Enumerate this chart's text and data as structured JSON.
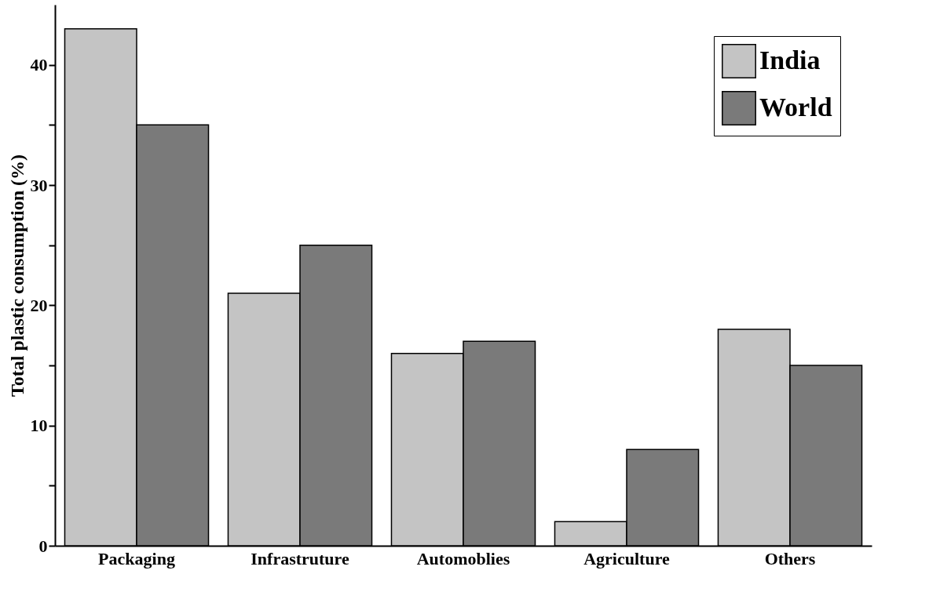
{
  "chart_data": {
    "type": "bar",
    "ylabel": "Total  plastic consumption (%)",
    "categories": [
      "Packaging",
      "Infrastruture",
      "Automoblies",
      "Agriculture",
      "Others"
    ],
    "series": [
      {
        "name": "India",
        "color": "#c4c4c4",
        "values": [
          43,
          21,
          16,
          2,
          18
        ]
      },
      {
        "name": "World",
        "color": "#7a7a7a",
        "values": [
          35,
          25,
          17,
          8,
          15
        ]
      }
    ],
    "ylim": [
      0,
      45
    ],
    "yticks": [
      0,
      {
        "value": 5,
        "label": null
      },
      10,
      {
        "value": 15,
        "label": null
      },
      20,
      {
        "value": 25,
        "label": null
      },
      30,
      {
        "value": 35,
        "label": null
      },
      40
    ],
    "grid": false,
    "legend": "top right"
  }
}
